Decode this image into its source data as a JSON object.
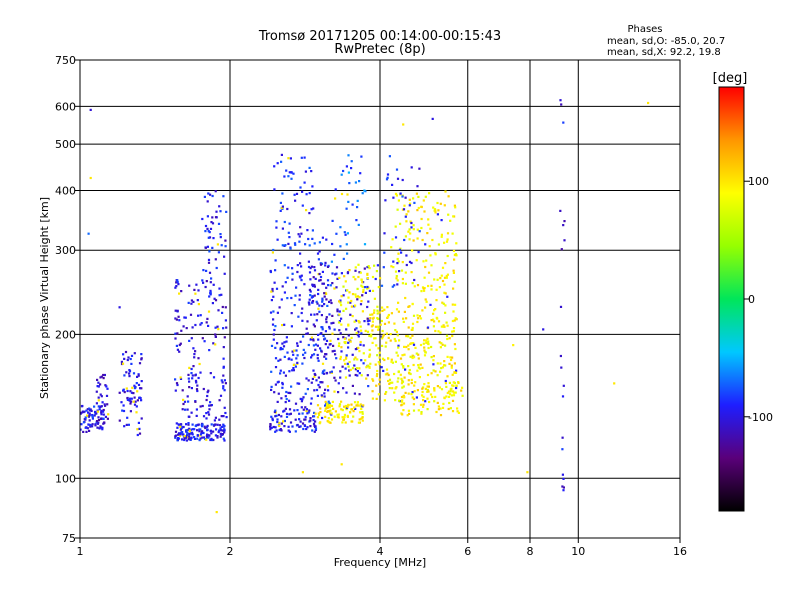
{
  "chart_data": {
    "type": "scatter",
    "title": "Tromsø 20171205 00:14:00-00:15:43",
    "subtitle": "RwPretec (8p)",
    "stats": {
      "heading": "Phases",
      "line1": "mean, sd,O: -85.0, 20.7",
      "line2": "mean, sd,X:  92.2, 19.8"
    },
    "xlabel": "Frequency [MHz]",
    "ylabel": "Stationary phase Virtual Height [km]",
    "x_scale": "log",
    "y_scale": "log",
    "xlim": [
      1,
      16
    ],
    "ylim": [
      75,
      750
    ],
    "xticks": [
      1,
      2,
      4,
      6,
      8,
      10,
      16
    ],
    "xtick_labels": [
      "1",
      "2",
      "4",
      "6",
      "8",
      "10",
      "16"
    ],
    "yticks": [
      75,
      100,
      200,
      300,
      400,
      500,
      600,
      750
    ],
    "ytick_labels": [
      "75",
      "100",
      "200",
      "300",
      "400",
      "500",
      "600",
      "750"
    ],
    "grid": true,
    "colorbar": {
      "label": "[deg]",
      "range": [
        -180,
        180
      ],
      "ticks": [
        100,
        0,
        -100
      ],
      "tick_labels": [
        "100",
        "0",
        "-100"
      ],
      "colors": [
        "#000000",
        "#5a007a",
        "#1e1eff",
        "#00c8ff",
        "#00e65a",
        "#96ff00",
        "#ffff00",
        "#ff9600",
        "#ff0000"
      ]
    },
    "clusters": [
      {
        "name": "c1",
        "x": [
          1.0,
          1.12
        ],
        "y": [
          125,
          142
        ],
        "phase": -95,
        "count": 70
      },
      {
        "name": "c2",
        "x": [
          1.08,
          1.14
        ],
        "y": [
          130,
          165
        ],
        "phase": -105,
        "count": 40
      },
      {
        "name": "c3",
        "x": [
          1.2,
          1.33
        ],
        "y": [
          123,
          185
        ],
        "phase": -100,
        "count": 80
      },
      {
        "name": "c4",
        "x": [
          1.55,
          1.95
        ],
        "y": [
          120,
          130
        ],
        "phase": -95,
        "count": 150
      },
      {
        "name": "c5",
        "x": [
          1.55,
          1.97
        ],
        "y": [
          130,
          260
        ],
        "phase": -100,
        "count": 180
      },
      {
        "name": "c6",
        "x": [
          1.75,
          1.97
        ],
        "y": [
          260,
          400
        ],
        "phase": -95,
        "count": 50
      },
      {
        "name": "c7",
        "x": [
          2.4,
          3.0
        ],
        "y": [
          125,
          140
        ],
        "phase": -95,
        "count": 90
      },
      {
        "name": "c8",
        "x": [
          2.4,
          3.2
        ],
        "y": [
          140,
          320
        ],
        "phase": -90,
        "count": 250
      },
      {
        "name": "c9",
        "x": [
          2.45,
          2.95
        ],
        "y": [
          300,
          480
        ],
        "phase": -90,
        "count": 60
      },
      {
        "name": "c10",
        "x": [
          3.0,
          3.7
        ],
        "y": [
          130,
          145
        ],
        "phase": 95,
        "count": 100
      },
      {
        "name": "c11",
        "x": [
          2.9,
          3.8
        ],
        "y": [
          150,
          280
        ],
        "phase": -100,
        "count": 180
      },
      {
        "name": "c12",
        "x": [
          3.3,
          4.0
        ],
        "y": [
          160,
          280
        ],
        "phase": 90,
        "count": 120
      },
      {
        "name": "c13",
        "x": [
          3.2,
          3.75
        ],
        "y": [
          280,
          480
        ],
        "phase": -70,
        "count": 40
      },
      {
        "name": "c14",
        "x": [
          3.8,
          5.7
        ],
        "y": [
          145,
          230
        ],
        "phase": 95,
        "count": 300
      },
      {
        "name": "c15",
        "x": [
          4.2,
          5.7
        ],
        "y": [
          230,
          400
        ],
        "phase": 95,
        "count": 160
      },
      {
        "name": "c16",
        "x": [
          4.4,
          5.9
        ],
        "y": [
          135,
          160
        ],
        "phase": 95,
        "count": 80
      },
      {
        "name": "c17",
        "x": [
          4.0,
          4.9
        ],
        "y": [
          250,
          480
        ],
        "phase": -90,
        "count": 40
      },
      {
        "name": "c18",
        "x": [
          9.2,
          9.4
        ],
        "y": [
          85,
          660
        ],
        "phase": -100,
        "count": 20
      }
    ],
    "outliers": [
      {
        "x": 1.05,
        "y": 590,
        "phase": -105
      },
      {
        "x": 1.05,
        "y": 425,
        "phase": 100
      },
      {
        "x": 1.04,
        "y": 325,
        "phase": -70
      },
      {
        "x": 1.2,
        "y": 228,
        "phase": -100
      },
      {
        "x": 1.88,
        "y": 85,
        "phase": 100
      },
      {
        "x": 2.8,
        "y": 103,
        "phase": 100
      },
      {
        "x": 3.35,
        "y": 107,
        "phase": 100
      },
      {
        "x": 7.9,
        "y": 103,
        "phase": 100
      },
      {
        "x": 7.4,
        "y": 190,
        "phase": 95
      },
      {
        "x": 8.5,
        "y": 205,
        "phase": -100
      },
      {
        "x": 11.8,
        "y": 158,
        "phase": 100
      },
      {
        "x": 13.8,
        "y": 610,
        "phase": 100
      },
      {
        "x": 5.1,
        "y": 565,
        "phase": -100
      },
      {
        "x": 4.45,
        "y": 550,
        "phase": 100
      }
    ]
  }
}
